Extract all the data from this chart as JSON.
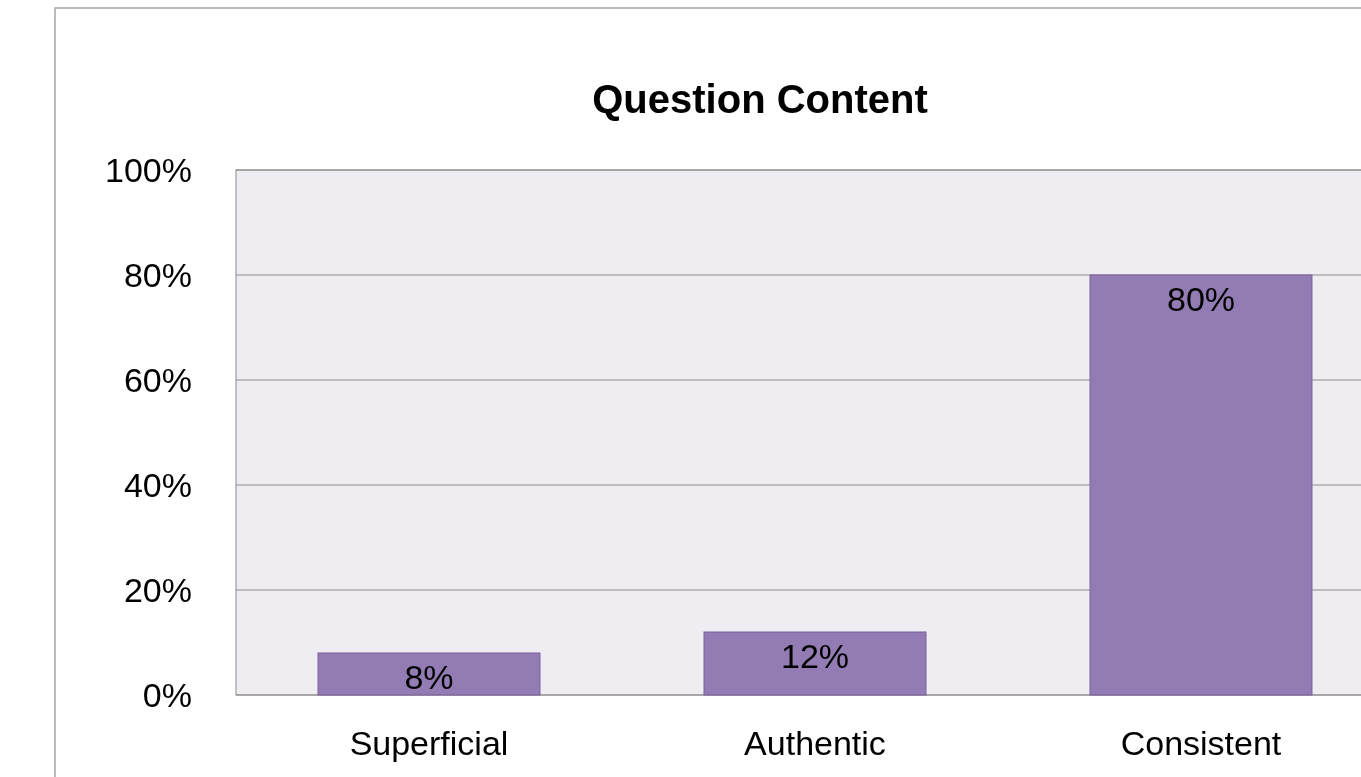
{
  "chart_data": {
    "type": "bar",
    "title": "Question Content",
    "categories": [
      "Superficial",
      "Authentic",
      "Consistent"
    ],
    "values": [
      8,
      12,
      80
    ],
    "color": "#937bb3",
    "ylim": [
      0,
      100
    ],
    "yticks": [
      {
        "value": 0,
        "label": "0%"
      },
      {
        "value": 20,
        "label": "20%"
      },
      {
        "value": 40,
        "label": "40%"
      },
      {
        "value": 60,
        "label": "60%"
      },
      {
        "value": 80,
        "label": "80%"
      },
      {
        "value": 100,
        "label": "100%"
      }
    ],
    "grid": "y",
    "value_labels": [
      "8%",
      "12%",
      "80%"
    ]
  }
}
